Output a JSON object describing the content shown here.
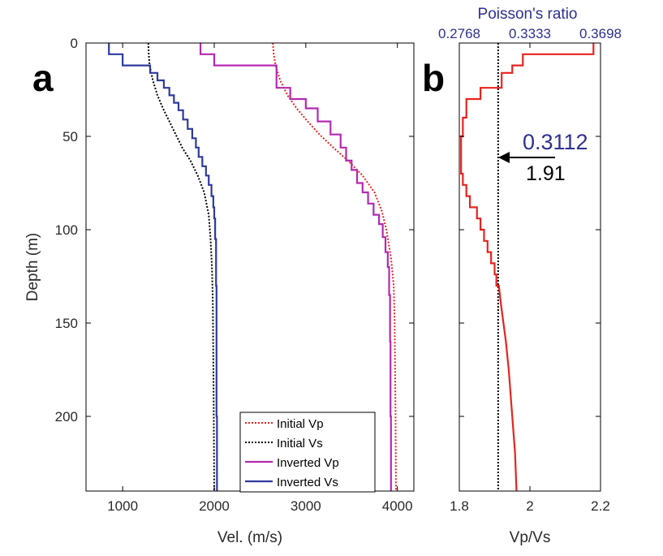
{
  "chart_data": [
    {
      "panel": "a",
      "type": "line",
      "xlabel": "Vel. (m/s)",
      "ylabel": "Depth (m)",
      "xlim": [
        600,
        4180
      ],
      "ylim": [
        0,
        240
      ],
      "y_reversed": true,
      "x_ticks": [
        1000,
        2000,
        3000,
        4000
      ],
      "y_ticks": [
        0,
        50,
        100,
        150,
        200
      ],
      "legend": {
        "placement": "bottom-right",
        "entries": [
          "Initial Vp",
          "Initial Vs",
          "Inverted Vp",
          "Inverted Vs"
        ]
      },
      "series": [
        {
          "name": "Initial Vp",
          "color": "#e8231f",
          "dash": "dotted",
          "step": false,
          "points": [
            [
              2640,
              0
            ],
            [
              2650,
              6
            ],
            [
              2670,
              12
            ],
            [
              2720,
              20
            ],
            [
              2800,
              28
            ],
            [
              2900,
              35
            ],
            [
              3020,
              42
            ],
            [
              3150,
              49
            ],
            [
              3300,
              56
            ],
            [
              3460,
              63
            ],
            [
              3620,
              71
            ],
            [
              3750,
              80
            ],
            [
              3830,
              90
            ],
            [
              3880,
              100
            ],
            [
              3930,
              115
            ],
            [
              3960,
              130
            ],
            [
              3970,
              150
            ],
            [
              3980,
              200
            ],
            [
              3985,
              240
            ]
          ]
        },
        {
          "name": "Initial Vs",
          "color": "#000000",
          "dash": "dotted",
          "step": false,
          "points": [
            [
              1280,
              0
            ],
            [
              1285,
              6
            ],
            [
              1295,
              12
            ],
            [
              1330,
              20
            ],
            [
              1380,
              28
            ],
            [
              1440,
              35
            ],
            [
              1510,
              42
            ],
            [
              1580,
              49
            ],
            [
              1650,
              56
            ],
            [
              1740,
              63
            ],
            [
              1820,
              71
            ],
            [
              1890,
              80
            ],
            [
              1940,
              92
            ],
            [
              1960,
              105
            ],
            [
              1975,
              120
            ],
            [
              1985,
              140
            ],
            [
              1990,
              170
            ],
            [
              1995,
              200
            ],
            [
              2000,
              240
            ]
          ]
        },
        {
          "name": "Inverted Vp",
          "color": "#b22ab1",
          "dash": "solid",
          "step": true,
          "points": [
            [
              1850,
              0
            ],
            [
              1850,
              6
            ],
            [
              2000,
              6
            ],
            [
              2000,
              12
            ],
            [
              2680,
              12
            ],
            [
              2680,
              24
            ],
            [
              2830,
              24
            ],
            [
              2830,
              30
            ],
            [
              3000,
              30
            ],
            [
              3000,
              35
            ],
            [
              3130,
              35
            ],
            [
              3130,
              42
            ],
            [
              3270,
              42
            ],
            [
              3270,
              49
            ],
            [
              3380,
              49
            ],
            [
              3380,
              56
            ],
            [
              3440,
              56
            ],
            [
              3440,
              63
            ],
            [
              3500,
              63
            ],
            [
              3500,
              68
            ],
            [
              3560,
              68
            ],
            [
              3560,
              75
            ],
            [
              3620,
              75
            ],
            [
              3620,
              80
            ],
            [
              3680,
              80
            ],
            [
              3680,
              86
            ],
            [
              3740,
              86
            ],
            [
              3740,
              92
            ],
            [
              3800,
              92
            ],
            [
              3800,
              97
            ],
            [
              3840,
              97
            ],
            [
              3840,
              104
            ],
            [
              3870,
              104
            ],
            [
              3870,
              112
            ],
            [
              3895,
              112
            ],
            [
              3895,
              120
            ],
            [
              3910,
              120
            ],
            [
              3910,
              135
            ],
            [
              3920,
              135
            ],
            [
              3920,
              160
            ],
            [
              3925,
              160
            ],
            [
              3925,
              200
            ],
            [
              3930,
              200
            ],
            [
              3930,
              240
            ]
          ]
        },
        {
          "name": "Inverted Vs",
          "color": "#2e3a9c",
          "dash": "solid",
          "step": true,
          "points": [
            [
              850,
              0
            ],
            [
              850,
              6
            ],
            [
              1000,
              6
            ],
            [
              1000,
              12
            ],
            [
              1300,
              12
            ],
            [
              1300,
              16
            ],
            [
              1380,
              16
            ],
            [
              1380,
              20
            ],
            [
              1450,
              20
            ],
            [
              1450,
              24
            ],
            [
              1510,
              24
            ],
            [
              1510,
              28
            ],
            [
              1560,
              28
            ],
            [
              1560,
              32
            ],
            [
              1610,
              32
            ],
            [
              1610,
              36
            ],
            [
              1660,
              36
            ],
            [
              1660,
              41
            ],
            [
              1710,
              41
            ],
            [
              1710,
              46
            ],
            [
              1760,
              46
            ],
            [
              1760,
              51
            ],
            [
              1800,
              51
            ],
            [
              1800,
              56
            ],
            [
              1830,
              56
            ],
            [
              1830,
              61
            ],
            [
              1870,
              61
            ],
            [
              1870,
              66
            ],
            [
              1910,
              66
            ],
            [
              1910,
              71
            ],
            [
              1940,
              71
            ],
            [
              1940,
              76
            ],
            [
              1970,
              76
            ],
            [
              1970,
              82
            ],
            [
              1990,
              82
            ],
            [
              1990,
              88
            ],
            [
              2000,
              88
            ],
            [
              2000,
              94
            ],
            [
              2010,
              94
            ],
            [
              2010,
              105
            ],
            [
              2020,
              105
            ],
            [
              2020,
              130
            ],
            [
              2025,
              130
            ],
            [
              2025,
              200
            ],
            [
              2030,
              200
            ],
            [
              2030,
              240
            ]
          ]
        }
      ]
    },
    {
      "panel": "b",
      "type": "line",
      "xlabel": "Vp/Vs",
      "x2label": "Poisson's ratio",
      "xlim": [
        1.8,
        2.2
      ],
      "ylim": [
        0,
        240
      ],
      "y_reversed": true,
      "x_ticks": [
        1.8,
        2,
        2.2
      ],
      "x_tick_labels": [
        "1.8",
        "2",
        "2.2"
      ],
      "x2_ticks": [
        1.8,
        2,
        2.2
      ],
      "x2_tick_labels": [
        "0.2768",
        "0.3333",
        "0.3698"
      ],
      "reference_line": {
        "x": 1.91,
        "color": "#000000",
        "dash": "dotted"
      },
      "annotation": {
        "poisson": "0.3112",
        "ratio": "1.91",
        "arrow_depth": 60
      },
      "series": [
        {
          "name": "Vp/Vs",
          "color": "#e8231f",
          "dash": "solid",
          "step": true,
          "points": [
            [
              2.18,
              0
            ],
            [
              2.18,
              6
            ],
            [
              1.98,
              6
            ],
            [
              1.98,
              12
            ],
            [
              1.95,
              12
            ],
            [
              1.95,
              16
            ],
            [
              1.92,
              16
            ],
            [
              1.92,
              24
            ],
            [
              1.86,
              24
            ],
            [
              1.86,
              30
            ],
            [
              1.82,
              30
            ],
            [
              1.82,
              40
            ],
            [
              1.81,
              40
            ],
            [
              1.81,
              50
            ],
            [
              1.805,
              50
            ],
            [
              1.805,
              70
            ],
            [
              1.81,
              70
            ],
            [
              1.81,
              76
            ],
            [
              1.82,
              76
            ],
            [
              1.82,
              82
            ],
            [
              1.83,
              82
            ],
            [
              1.83,
              88
            ],
            [
              1.85,
              88
            ],
            [
              1.85,
              94
            ],
            [
              1.86,
              94
            ],
            [
              1.86,
              100
            ],
            [
              1.87,
              100
            ],
            [
              1.87,
              106
            ],
            [
              1.88,
              106
            ],
            [
              1.88,
              112
            ],
            [
              1.89,
              112
            ],
            [
              1.89,
              118
            ],
            [
              1.9,
              118
            ],
            [
              1.9,
              124
            ],
            [
              1.905,
              124
            ],
            [
              1.905,
              130
            ],
            [
              1.912,
              130
            ],
            [
              1.918,
              140
            ],
            [
              1.925,
              150
            ],
            [
              1.932,
              160
            ],
            [
              1.94,
              175
            ],
            [
              1.946,
              190
            ],
            [
              1.952,
              205
            ],
            [
              1.958,
              220
            ],
            [
              1.962,
              240
            ]
          ]
        }
      ]
    }
  ],
  "labels": {
    "panel_a": "a",
    "panel_b": "b"
  }
}
